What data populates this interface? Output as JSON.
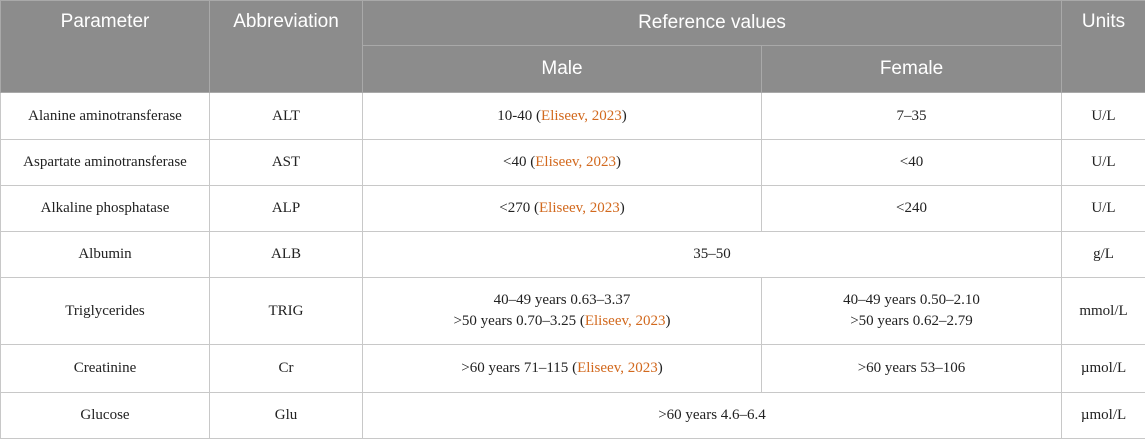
{
  "headers": {
    "parameter": "Parameter",
    "abbreviation": "Abbreviation",
    "reference_values": "Reference values",
    "units": "Units",
    "male": "Male",
    "female": "Female"
  },
  "rows": [
    {
      "parameter": "Alanine aminotransferase",
      "abbr": "ALT",
      "male": "10-40",
      "male_cite": "Eliseev, 2023",
      "female": "7–35",
      "units": "U/L"
    },
    {
      "parameter": "Aspartate aminotransferase",
      "abbr": "AST",
      "male": "<40",
      "male_cite": "Eliseev, 2023",
      "female": "<40",
      "units": "U/L"
    },
    {
      "parameter": "Alkaline phosphatase",
      "abbr": "ALP",
      "male": "<270",
      "male_cite": "Eliseev, 2023",
      "female": "<240",
      "units": "U/L"
    },
    {
      "parameter": "Albumin",
      "abbr": "ALB",
      "combined": "35–50",
      "units": "g/L"
    },
    {
      "parameter": "Triglycerides",
      "abbr": "TRIG",
      "male_line1": "40–49 years 0.63–3.37",
      "male_line2": ">50 years 0.70–3.25",
      "male_cite": "Eliseev, 2023",
      "female_line1": "40–49 years 0.50–2.10",
      "female_line2": ">50 years 0.62–2.79",
      "units": "mmol/L"
    },
    {
      "parameter": "Creatinine",
      "abbr": "Cr",
      "male": ">60 years 71–115",
      "male_cite": "Eliseev, 2023",
      "female": ">60 years 53–106",
      "units": "µmol/L"
    },
    {
      "parameter": "Glucose",
      "abbr": "Glu",
      "combined": ">60 years 4.6–6.4",
      "units": "µmol/L"
    }
  ],
  "cite_open": "(",
  "cite_close": ")"
}
